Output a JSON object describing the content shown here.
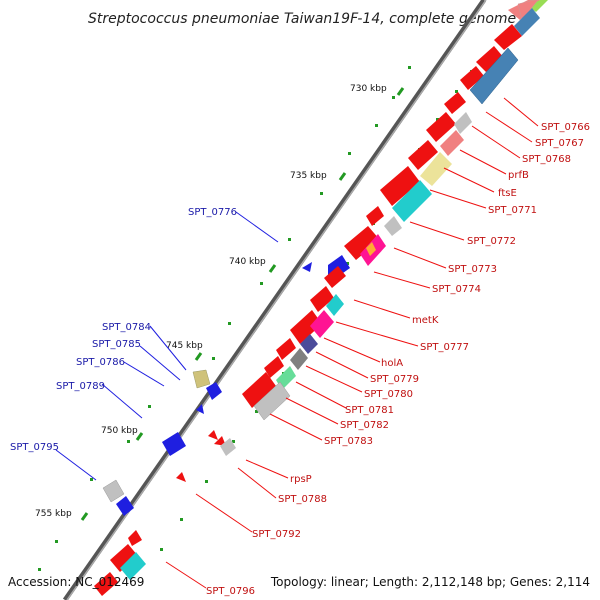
{
  "header": {
    "title": "Streptococcus pneumoniae Taiwan19F-14, complete genome"
  },
  "footer": {
    "accession": "Accession: NC_012469",
    "topology": "Topology: linear; Length: 2,112,148 bp; Genes: 2,114"
  },
  "scale": {
    "ticks": [
      {
        "label": "730 kbp",
        "kbp": 730
      },
      {
        "label": "735 kbp",
        "kbp": 735
      },
      {
        "label": "740 kbp",
        "kbp": 740
      },
      {
        "label": "745 kbp",
        "kbp": 745
      },
      {
        "label": "750 kbp",
        "kbp": 750
      },
      {
        "label": "755 kbp",
        "kbp": 755
      }
    ]
  },
  "colors": {
    "red": "#ee1111",
    "blue": "#1f1fe0",
    "steelblue": "#4682b4",
    "gray": "#c0c0c0",
    "darkgray": "#808080",
    "pink": "#f08080",
    "khaki": "#ece39a",
    "cyan": "#22cccc",
    "magenta": "#ff1493",
    "purple": "#4b4b9a",
    "green": "#66dd99",
    "olive": "#cfc27a",
    "tick": "#229922",
    "label_red": "#c01010",
    "label_blue": "#1a1aa8"
  },
  "genes_plus": [
    {
      "label": "SPT_0766"
    },
    {
      "label": "SPT_0767"
    },
    {
      "label": "SPT_0768"
    },
    {
      "label": "prfB"
    },
    {
      "label": "ftsE"
    },
    {
      "label": "SPT_0771"
    },
    {
      "label": "SPT_0772"
    },
    {
      "label": "SPT_0773"
    },
    {
      "label": "SPT_0774"
    },
    {
      "label": "metK"
    },
    {
      "label": "SPT_0777"
    },
    {
      "label": "holA"
    },
    {
      "label": "SPT_0779"
    },
    {
      "label": "SPT_0780"
    },
    {
      "label": "SPT_0781"
    },
    {
      "label": "SPT_0782"
    },
    {
      "label": "SPT_0783"
    },
    {
      "label": "rpsP"
    },
    {
      "label": "SPT_0788"
    },
    {
      "label": "SPT_0792"
    },
    {
      "label": "SPT_0796"
    }
  ],
  "genes_minus": [
    {
      "label": "SPT_0776"
    },
    {
      "label": "SPT_0784"
    },
    {
      "label": "SPT_0785"
    },
    {
      "label": "SPT_0786"
    },
    {
      "label": "SPT_0789"
    },
    {
      "label": "SPT_0795"
    }
  ]
}
